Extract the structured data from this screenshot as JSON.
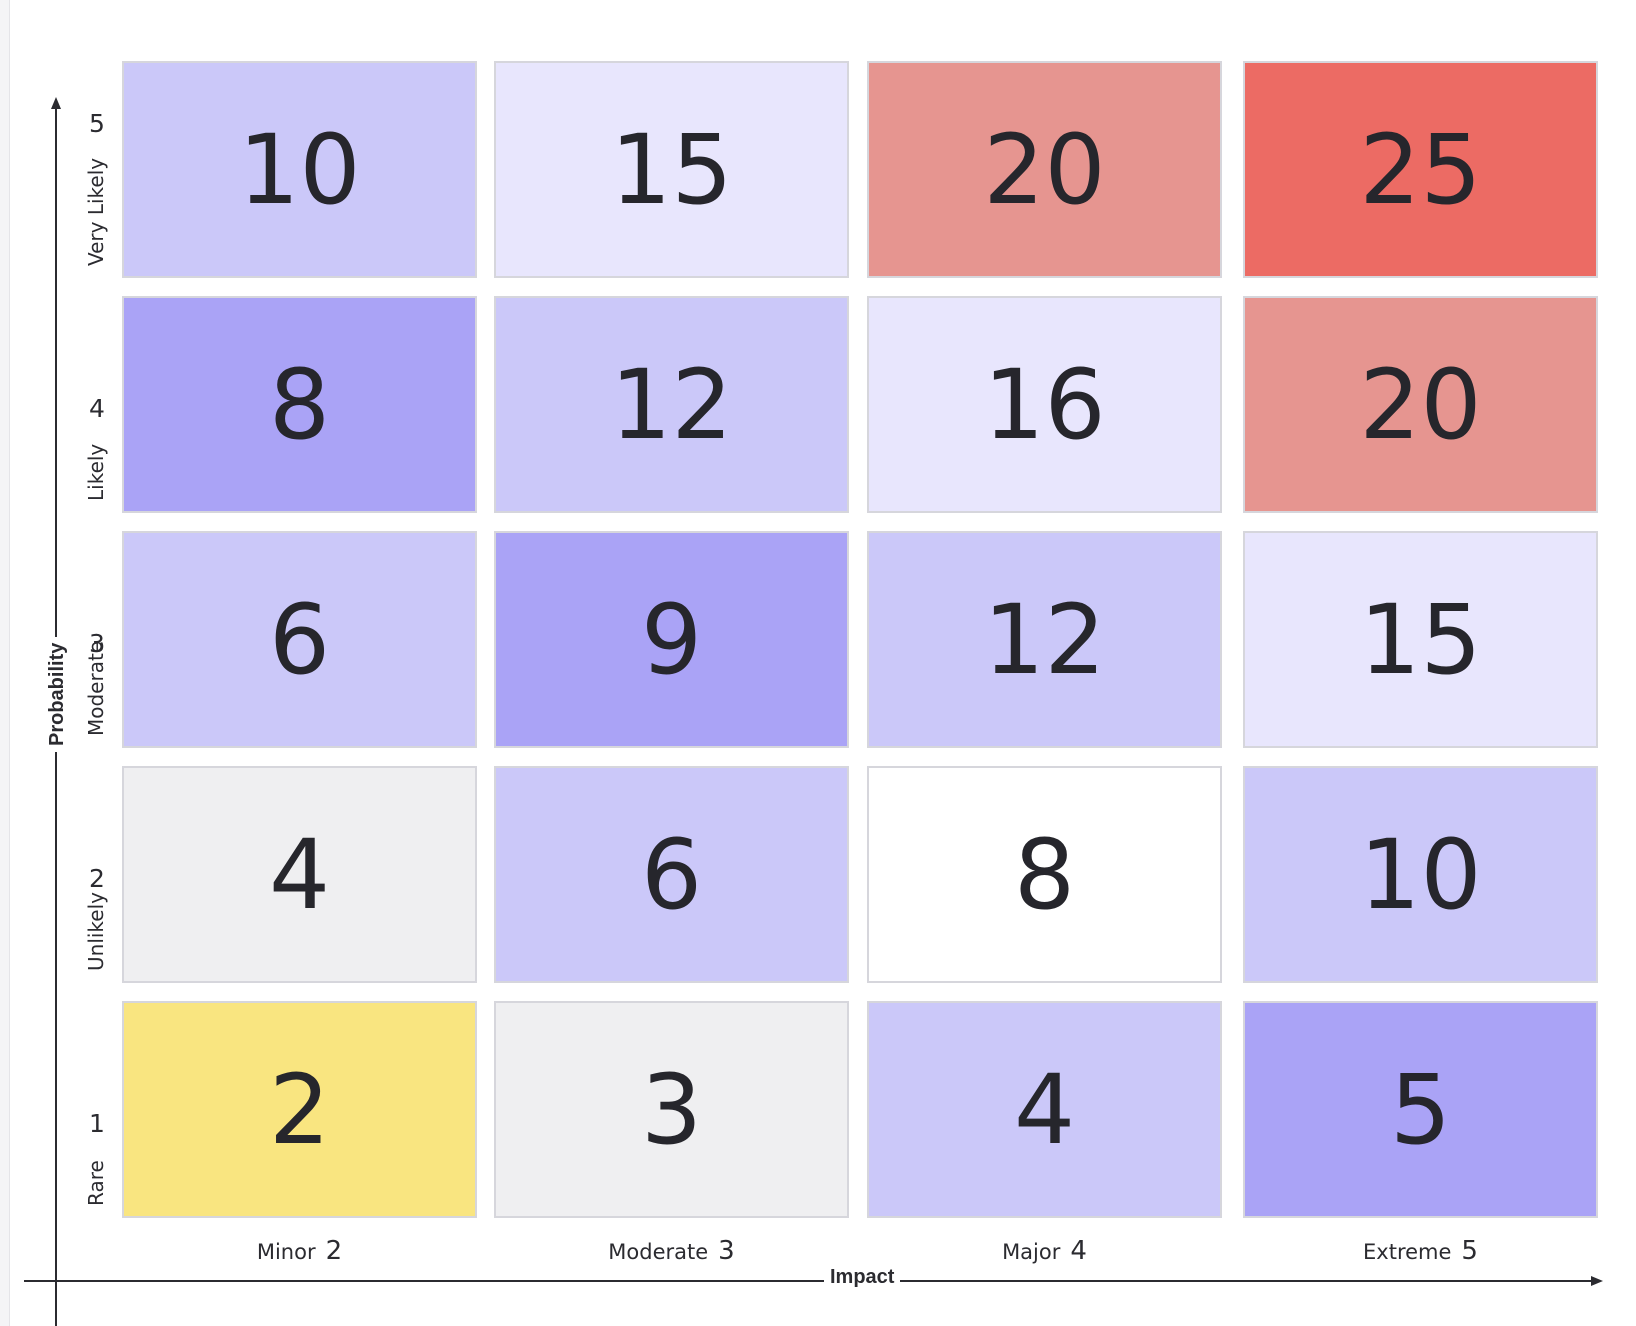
{
  "matrix": {
    "x_axis_title": "Impact",
    "y_axis_title": "Probability",
    "impact_levels": [
      {
        "label": "Minor",
        "value": "2"
      },
      {
        "label": "Moderate",
        "value": "3"
      },
      {
        "label": "Major",
        "value": "4"
      },
      {
        "label": "Extreme",
        "value": "5"
      }
    ],
    "probability_levels": [
      {
        "label": "Very Likely",
        "value": "5"
      },
      {
        "label": "Likely",
        "value": "4"
      },
      {
        "label": "Moderate",
        "value": "3"
      },
      {
        "label": "Unlikely",
        "value": "2"
      },
      {
        "label": "Rare",
        "value": "1"
      }
    ],
    "rows": [
      {
        "probability": "5",
        "cells": [
          {
            "score": "10",
            "color": "#cbc8f9"
          },
          {
            "score": "15",
            "color": "#e8e6fd"
          },
          {
            "score": "20",
            "color": "#e69590"
          },
          {
            "score": "25",
            "color": "#ec6b64"
          }
        ]
      },
      {
        "probability": "4",
        "cells": [
          {
            "score": "8",
            "color": "#aaa3f6"
          },
          {
            "score": "12",
            "color": "#cbc8f9"
          },
          {
            "score": "16",
            "color": "#e8e6fd"
          },
          {
            "score": "20",
            "color": "#e69590"
          }
        ]
      },
      {
        "probability": "3",
        "cells": [
          {
            "score": "6",
            "color": "#cbc8f9"
          },
          {
            "score": "9",
            "color": "#aaa3f6"
          },
          {
            "score": "12",
            "color": "#cbc8f9"
          },
          {
            "score": "15",
            "color": "#e8e6fd"
          }
        ]
      },
      {
        "probability": "2",
        "cells": [
          {
            "score": "4",
            "color": "#efeff1"
          },
          {
            "score": "6",
            "color": "#cbc8f9"
          },
          {
            "score": "8",
            "color": "#ffffff"
          },
          {
            "score": "10",
            "color": "#cbc8f9"
          }
        ]
      },
      {
        "probability": "1",
        "cells": [
          {
            "score": "2",
            "color": "#f9e580"
          },
          {
            "score": "3",
            "color": "#efeff1"
          },
          {
            "score": "4",
            "color": "#cbc8f9"
          },
          {
            "score": "5",
            "color": "#aaa3f6"
          }
        ]
      }
    ]
  }
}
